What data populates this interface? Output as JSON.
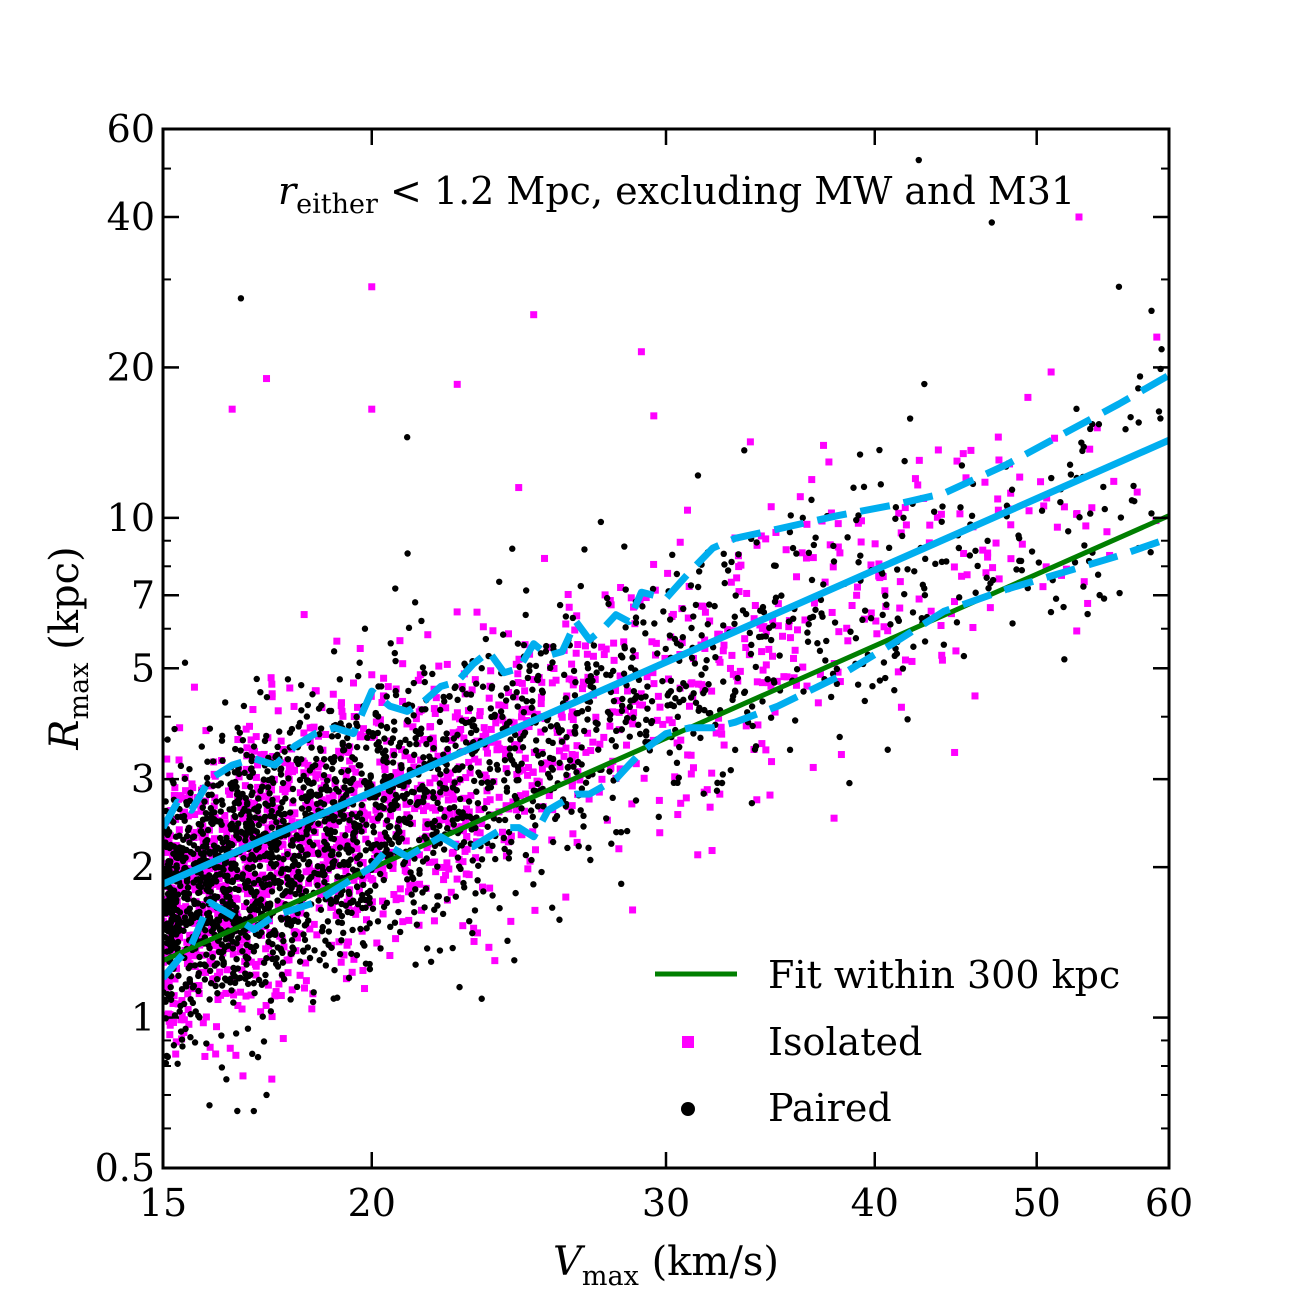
{
  "chart_data": {
    "type": "scatter",
    "xlabel": {
      "symbol": "V",
      "subscript": "max",
      "unit": " (km/s)"
    },
    "ylabel": {
      "symbol": "R",
      "subscript": "max",
      "unit": " (kpc)"
    },
    "annotation": {
      "symbol": "r",
      "subscript": "either",
      "text": " < 1.2 Mpc, excluding MW and M31"
    },
    "x_scale": "log",
    "y_scale": "log",
    "xlim": [
      15,
      60
    ],
    "ylim": [
      0.5,
      60
    ],
    "x_ticks": [
      15,
      20,
      30,
      40,
      50,
      60
    ],
    "x_tick_labels": [
      "15",
      "20",
      "30",
      "40",
      "50",
      "60"
    ],
    "y_ticks": [
      0.5,
      1,
      2,
      3,
      5,
      7,
      10,
      20,
      40,
      60
    ],
    "y_tick_labels": [
      "0.5",
      "1",
      "2",
      "3",
      "5",
      "7",
      "10",
      "20",
      "40",
      "60"
    ],
    "grid": false,
    "legend_placement": "bottom-right",
    "legend": [
      {
        "label": "Fit within 300 kpc",
        "kind": "line",
        "color": "#007f00"
      },
      {
        "label": "Isolated",
        "kind": "square",
        "color": "#ff00ff"
      },
      {
        "label": "Paired",
        "kind": "dot",
        "color": "#000000"
      }
    ],
    "colors": {
      "isolated": "#ff00ff",
      "paired": "#000000",
      "fit": "#007f00",
      "trend": "#00aeef"
    },
    "series": [
      {
        "name": "Fit within 300 kpc",
        "kind": "line",
        "color": "#007f00",
        "x": [
          15,
          60
        ],
        "y": [
          1.3,
          10.1
        ]
      },
      {
        "kind": "line",
        "color": "#00aeef",
        "x": [
          15,
          60
        ],
        "y": [
          1.85,
          14.3
        ]
      },
      {
        "kind": "dashed-line",
        "color": "#00aeef",
        "x": [
          15,
          15.3,
          15.6,
          16,
          16.5,
          17,
          17.5,
          18,
          18.5,
          19,
          19.5,
          20,
          20.5,
          21,
          21.5,
          22,
          22.5,
          23,
          23.5,
          24,
          24.5,
          25,
          25.5,
          26,
          26.5,
          27,
          27.5,
          28,
          28.5,
          29,
          30,
          31,
          32,
          33,
          35,
          38,
          41,
          44,
          48,
          52,
          56,
          60
        ],
        "y": [
          2.4,
          2.7,
          2.6,
          3.0,
          3.2,
          3.3,
          3.2,
          3.5,
          3.7,
          3.8,
          3.7,
          4.5,
          4.2,
          4.1,
          4.3,
          4.6,
          4.7,
          5.1,
          5.4,
          4.9,
          5.0,
          5.6,
          5.3,
          5.4,
          6.2,
          5.7,
          6.0,
          6.4,
          6.2,
          7.1,
          6.9,
          7.8,
          8.7,
          9.1,
          9.5,
          10.1,
          10.6,
          11.2,
          12.8,
          14.8,
          16.9,
          19.3
        ]
      },
      {
        "kind": "dashed-line",
        "color": "#00aeef",
        "x": [
          15,
          15.3,
          15.6,
          16,
          16.5,
          17,
          17.5,
          18,
          18.5,
          19,
          19.5,
          20,
          20.5,
          21,
          21.5,
          22,
          22.5,
          23,
          23.5,
          24,
          24.5,
          25,
          25.5,
          26,
          26.5,
          27,
          27.5,
          28,
          28.5,
          29,
          30,
          31,
          32,
          33,
          35,
          38,
          41,
          44,
          48,
          52,
          56,
          60
        ],
        "y": [
          1.2,
          1.3,
          1.4,
          1.7,
          1.6,
          1.5,
          1.6,
          1.65,
          1.7,
          1.8,
          1.9,
          2.0,
          2.2,
          2.1,
          2.2,
          2.3,
          2.2,
          2.2,
          2.3,
          2.4,
          2.4,
          2.3,
          2.6,
          2.7,
          2.8,
          2.8,
          2.9,
          3.0,
          3.2,
          3.4,
          3.7,
          3.8,
          3.8,
          3.9,
          4.2,
          4.8,
          5.6,
          6.5,
          7.2,
          7.8,
          8.4,
          9.1
        ]
      }
    ],
    "scatter_groups": [
      {
        "name": "Isolated",
        "marker": "square",
        "color": "#ff00ff",
        "count": 1700
      },
      {
        "name": "Paired",
        "marker": "dot",
        "color": "#000000",
        "count": 2300
      }
    ],
    "notable_points": [
      {
        "group": "Paired",
        "x": 42.5,
        "y": 52
      },
      {
        "group": "Paired",
        "x": 47,
        "y": 39
      },
      {
        "group": "Paired",
        "x": 56,
        "y": 29
      },
      {
        "group": "Paired",
        "x": 16.7,
        "y": 27.5
      },
      {
        "group": "Paired",
        "x": 21,
        "y": 14.5
      },
      {
        "group": "Paired",
        "x": 17,
        "y": 0.65
      },
      {
        "group": "Paired",
        "x": 17.3,
        "y": 0.7
      },
      {
        "group": "Isolated",
        "x": 53,
        "y": 40
      },
      {
        "group": "Isolated",
        "x": 20,
        "y": 29
      },
      {
        "group": "Isolated",
        "x": 25,
        "y": 25.5
      },
      {
        "group": "Isolated",
        "x": 59,
        "y": 23
      },
      {
        "group": "Isolated",
        "x": 29,
        "y": 21.5
      },
      {
        "group": "Isolated",
        "x": 22.5,
        "y": 18.5
      },
      {
        "group": "Isolated",
        "x": 17.3,
        "y": 19
      },
      {
        "group": "Isolated",
        "x": 16.5,
        "y": 16.5
      },
      {
        "group": "Isolated",
        "x": 20,
        "y": 16.5
      },
      {
        "group": "Isolated",
        "x": 29.5,
        "y": 16
      }
    ]
  }
}
